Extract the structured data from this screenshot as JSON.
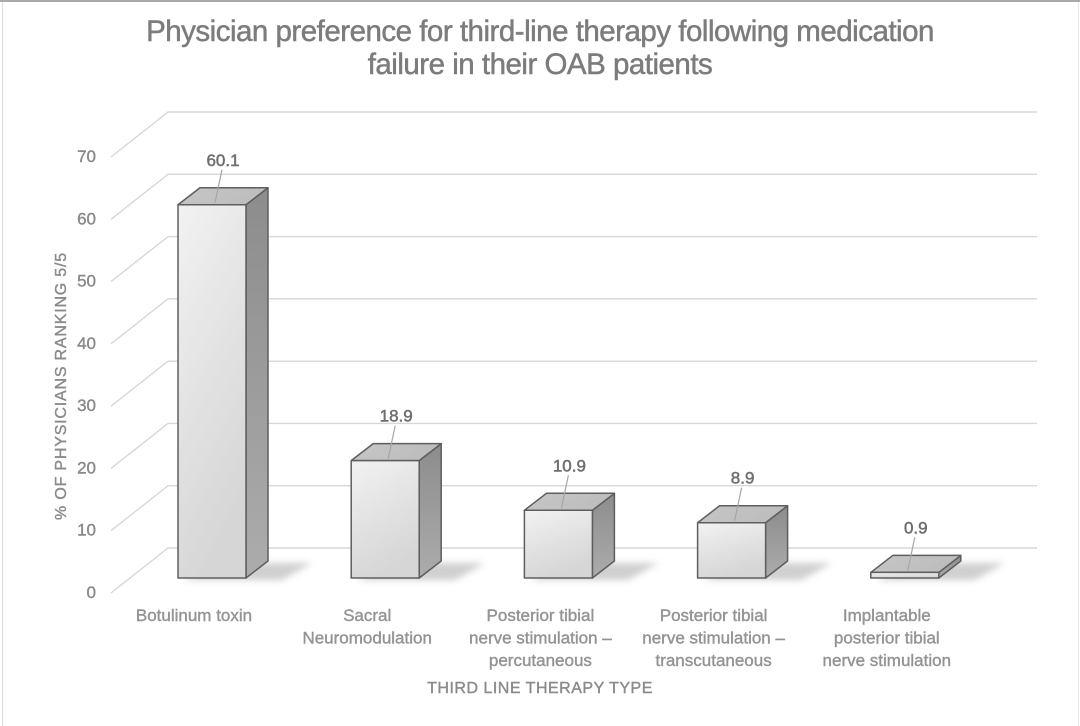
{
  "page": {
    "background": "#ffffff",
    "border_top_color": "#a9a9a9",
    "border_left_color": "#dedede",
    "border_right_color": "#e9e9e9"
  },
  "chart_data": {
    "type": "bar",
    "style": "3d-clustered-column",
    "title": "Physician preference for third-line therapy following medication failure in their OAB patients",
    "title_lines": [
      "Physician preference for third-line therapy following medication",
      "failure in their OAB patients"
    ],
    "categories": [
      "Botulinum toxin",
      "Sacral Neuromodulation",
      "Posterior tibial nerve stimulation – percutaneous",
      "Posterior tibial nerve stimulation – transcutaneous",
      "Implantable posterior tibial nerve stimulation"
    ],
    "category_lines": [
      [
        "Botulinum toxin"
      ],
      [
        "Sacral",
        "Neuromodulation"
      ],
      [
        "Posterior tibial",
        "nerve stimulation –",
        "percutaneous"
      ],
      [
        "Posterior tibial",
        "nerve stimulation –",
        "transcutaneous"
      ],
      [
        "Implantable",
        "posterior tibial",
        "nerve stimulation"
      ]
    ],
    "values": [
      60.1,
      18.9,
      10.9,
      8.9,
      0.9
    ],
    "value_labels": [
      "60.1",
      "18.9",
      "10.9",
      "8.9",
      "0.9"
    ],
    "xlabel": "THIRD LINE THERAPY TYPE",
    "ylabel": "% OF PHYSICIANS RANKING 5/5",
    "yticks": [
      0,
      10,
      20,
      30,
      40,
      50,
      60,
      70
    ],
    "ylim": [
      0,
      70
    ],
    "grid": true,
    "legend": false,
    "colors": {
      "bar_front_light": "#f2f2f2",
      "bar_front_dark": "#d6d6d6",
      "bar_side_dark": "#8c8c8c",
      "bar_side_light": "#acacac",
      "bar_top_light": "#c6c6c6",
      "bar_top_dark": "#bdbdbd",
      "outline": "#5e5e5e",
      "gridline": "#d7d7d7",
      "shadow": "#bdbdbd",
      "title_text": "#7c7c7c",
      "axis_text": "#8a8a8a",
      "category_text": "#939393",
      "value_text": "#6e6e6e",
      "leader_line": "#a6a6a6"
    }
  }
}
